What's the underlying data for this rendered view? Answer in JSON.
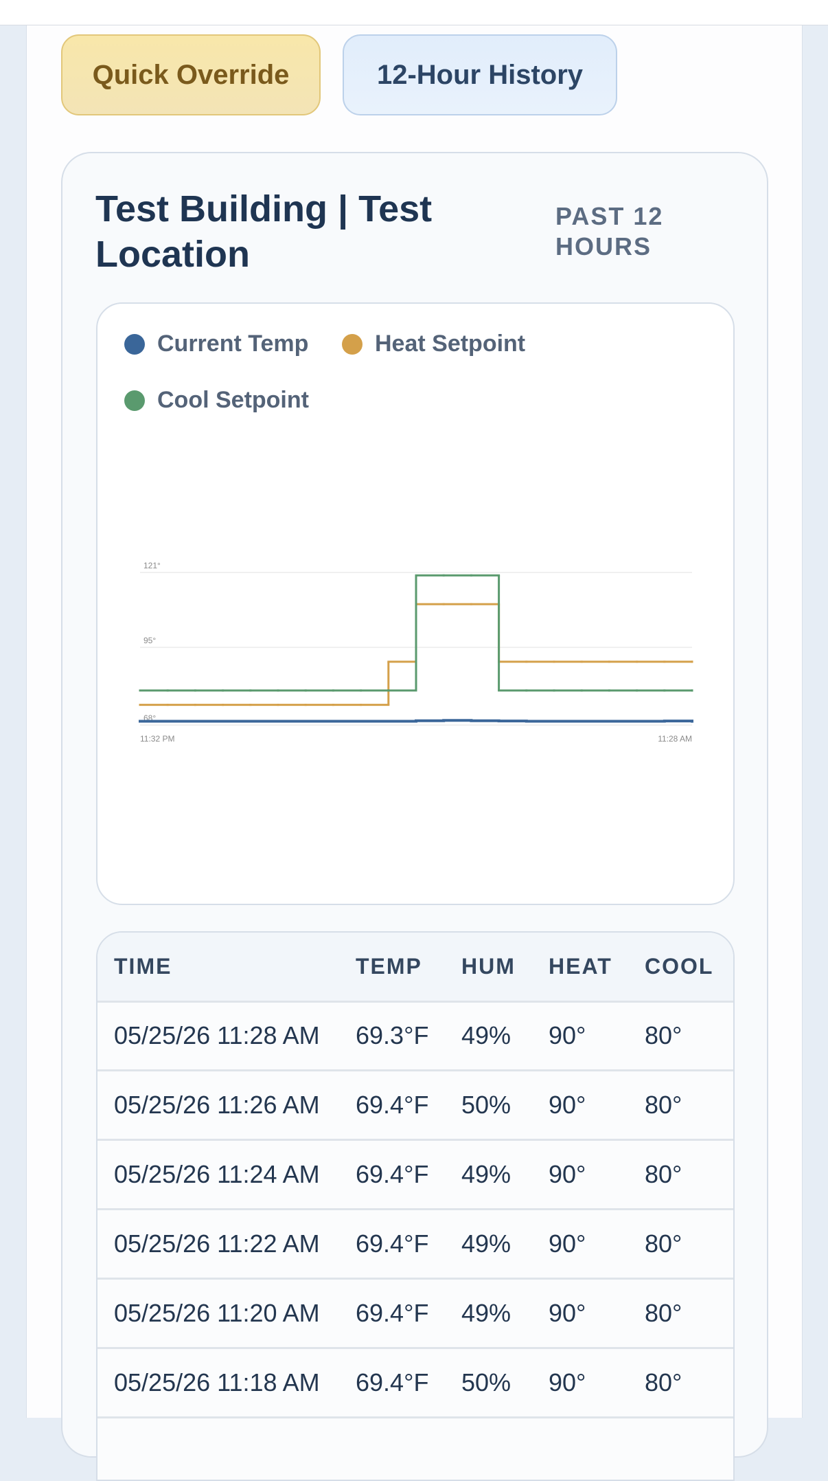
{
  "buttons": [
    "Quick Override",
    "12-Hour History"
  ],
  "card": {
    "title": "Test Building | Test Location",
    "subtitle": "PAST 12 HOURS"
  },
  "chart_data": {
    "type": "line",
    "step": true,
    "grid": true,
    "categories": [
      "11:32 PM",
      null,
      null,
      null,
      null,
      null,
      null,
      null,
      null,
      null,
      null,
      null,
      null,
      null,
      null,
      null,
      null,
      null,
      null,
      null,
      "11:28 AM"
    ],
    "series": [
      {
        "name": "Current Temp",
        "color": "#3a6699",
        "values": [
          69.3,
          69.3,
          69.3,
          69.3,
          69.3,
          69.3,
          69.3,
          69.3,
          69.3,
          69.3,
          69.5,
          69.6,
          69.5,
          69.4,
          69.3,
          69.3,
          69.3,
          69.3,
          69.3,
          69.4,
          69.3
        ]
      },
      {
        "name": "Heat Setpoint",
        "color": "#d4a04a",
        "values": [
          75,
          75,
          75,
          75,
          75,
          75,
          75,
          75,
          75,
          90,
          110,
          110,
          110,
          90,
          90,
          90,
          90,
          90,
          90,
          90,
          90
        ]
      },
      {
        "name": "Cool Setpoint",
        "color": "#5a9a6e",
        "values": [
          80,
          80,
          80,
          80,
          80,
          80,
          80,
          80,
          80,
          80,
          120,
          120,
          120,
          80,
          80,
          80,
          80,
          80,
          80,
          80,
          80
        ]
      }
    ],
    "ylim": [
      68,
      121
    ],
    "yticks": [
      {
        "value": 68,
        "label": "68°"
      },
      {
        "value": 95,
        "label": "95°"
      },
      {
        "value": 121,
        "label": "121°"
      }
    ]
  },
  "table": {
    "headers": [
      "TIME",
      "TEMP",
      "HUM",
      "HEAT",
      "COOL"
    ],
    "rows": [
      [
        "05/25/26 11:28 AM",
        "69.3°F",
        "49%",
        "90°",
        "80°"
      ],
      [
        "05/25/26 11:26 AM",
        "69.4°F",
        "50%",
        "90°",
        "80°"
      ],
      [
        "05/25/26 11:24 AM",
        "69.4°F",
        "49%",
        "90°",
        "80°"
      ],
      [
        "05/25/26 11:22 AM",
        "69.4°F",
        "49%",
        "90°",
        "80°"
      ],
      [
        "05/25/26 11:20 AM",
        "69.4°F",
        "49%",
        "90°",
        "80°"
      ],
      [
        "05/25/26 11:18 AM",
        "69.4°F",
        "50%",
        "90°",
        "80°"
      ]
    ]
  }
}
